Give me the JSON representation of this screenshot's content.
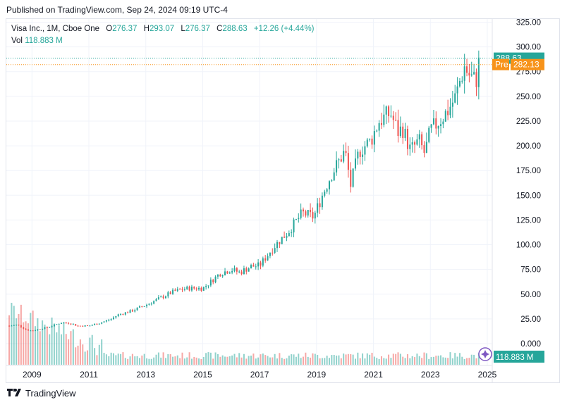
{
  "header": {
    "published": "Published on TradingView.com, Sep 24, 2024 09:19 UTC-4"
  },
  "legend": {
    "symbol": "Visa Inc., 1M, Cboe One",
    "o_label": "O",
    "o_value": "276.37",
    "h_label": "H",
    "h_value": "293.07",
    "l_label": "L",
    "l_value": "276.37",
    "c_label": "C",
    "c_value": "288.63",
    "change": "+12.26 (+4.44%)",
    "vol_label": "Vol",
    "vol_value": "118.883 M"
  },
  "footer": {
    "brand": "TradingView"
  },
  "colors": {
    "up": "#26a69a",
    "down": "#ef5350",
    "pre": "#f7931a",
    "grid": "#f0f3fa",
    "axis_text": "#131722"
  },
  "chart_data": {
    "type": "candlestick",
    "title": "Visa Inc., 1M, Cboe One",
    "y_axis": {
      "ticks": [
        0,
        25,
        50,
        75,
        100,
        125,
        150,
        175,
        200,
        225,
        250,
        275,
        300,
        325
      ],
      "tick_labels": [
        "0.000",
        "25.00",
        "50.00",
        "75.00",
        "100.00",
        "125.00",
        "150.00",
        "175.00",
        "200.00",
        "225.00",
        "250.00",
        "275.00",
        "300.00",
        "325.00"
      ],
      "ylim": [
        0,
        325
      ]
    },
    "x_axis": {
      "labels": [
        "2009",
        "2011",
        "2013",
        "2015",
        "2017",
        "2019",
        "2021",
        "2023",
        "2025"
      ],
      "label_years": [
        2009,
        2011,
        2013,
        2015,
        2017,
        2019,
        2021,
        2023,
        2025
      ],
      "range": [
        2008.1,
        2025.15
      ]
    },
    "price_path": {
      "years": [
        2008.2,
        2008.5,
        2008.8,
        2009.0,
        2009.3,
        2009.6,
        2010.0,
        2010.3,
        2010.6,
        2011.0,
        2011.4,
        2011.8,
        2012.0,
        2012.5,
        2013.0,
        2013.5,
        2014.0,
        2014.5,
        2015.0,
        2015.3,
        2015.6,
        2016.0,
        2016.3,
        2016.7,
        2017.0,
        2017.5,
        2018.0,
        2018.5,
        2018.9,
        2019.2,
        2019.5,
        2020.0,
        2020.2,
        2020.5,
        2020.9,
        2021.2,
        2021.6,
        2021.9,
        2022.0,
        2022.3,
        2022.6,
        2022.8,
        2023.0,
        2023.3,
        2023.6,
        2023.9,
        2024.0,
        2024.2,
        2024.4,
        2024.6,
        2024.73
      ],
      "closes": [
        18,
        19,
        14,
        13,
        15,
        17,
        21,
        21,
        18,
        18,
        21,
        25,
        29,
        33,
        39,
        46,
        53,
        56,
        56,
        63,
        71,
        75,
        72,
        78,
        79,
        98,
        113,
        132,
        128,
        150,
        170,
        195,
        160,
        195,
        205,
        225,
        233,
        212,
        220,
        195,
        205,
        192,
        215,
        225,
        235,
        250,
        262,
        280,
        270,
        265,
        288.63
      ]
    },
    "volume": {
      "last_label": "118.883 M"
    },
    "last_price": {
      "close": 288.63,
      "label": "288.63"
    },
    "premarket": {
      "tag": "Pre",
      "price": 282.13,
      "label": "282.13"
    }
  }
}
